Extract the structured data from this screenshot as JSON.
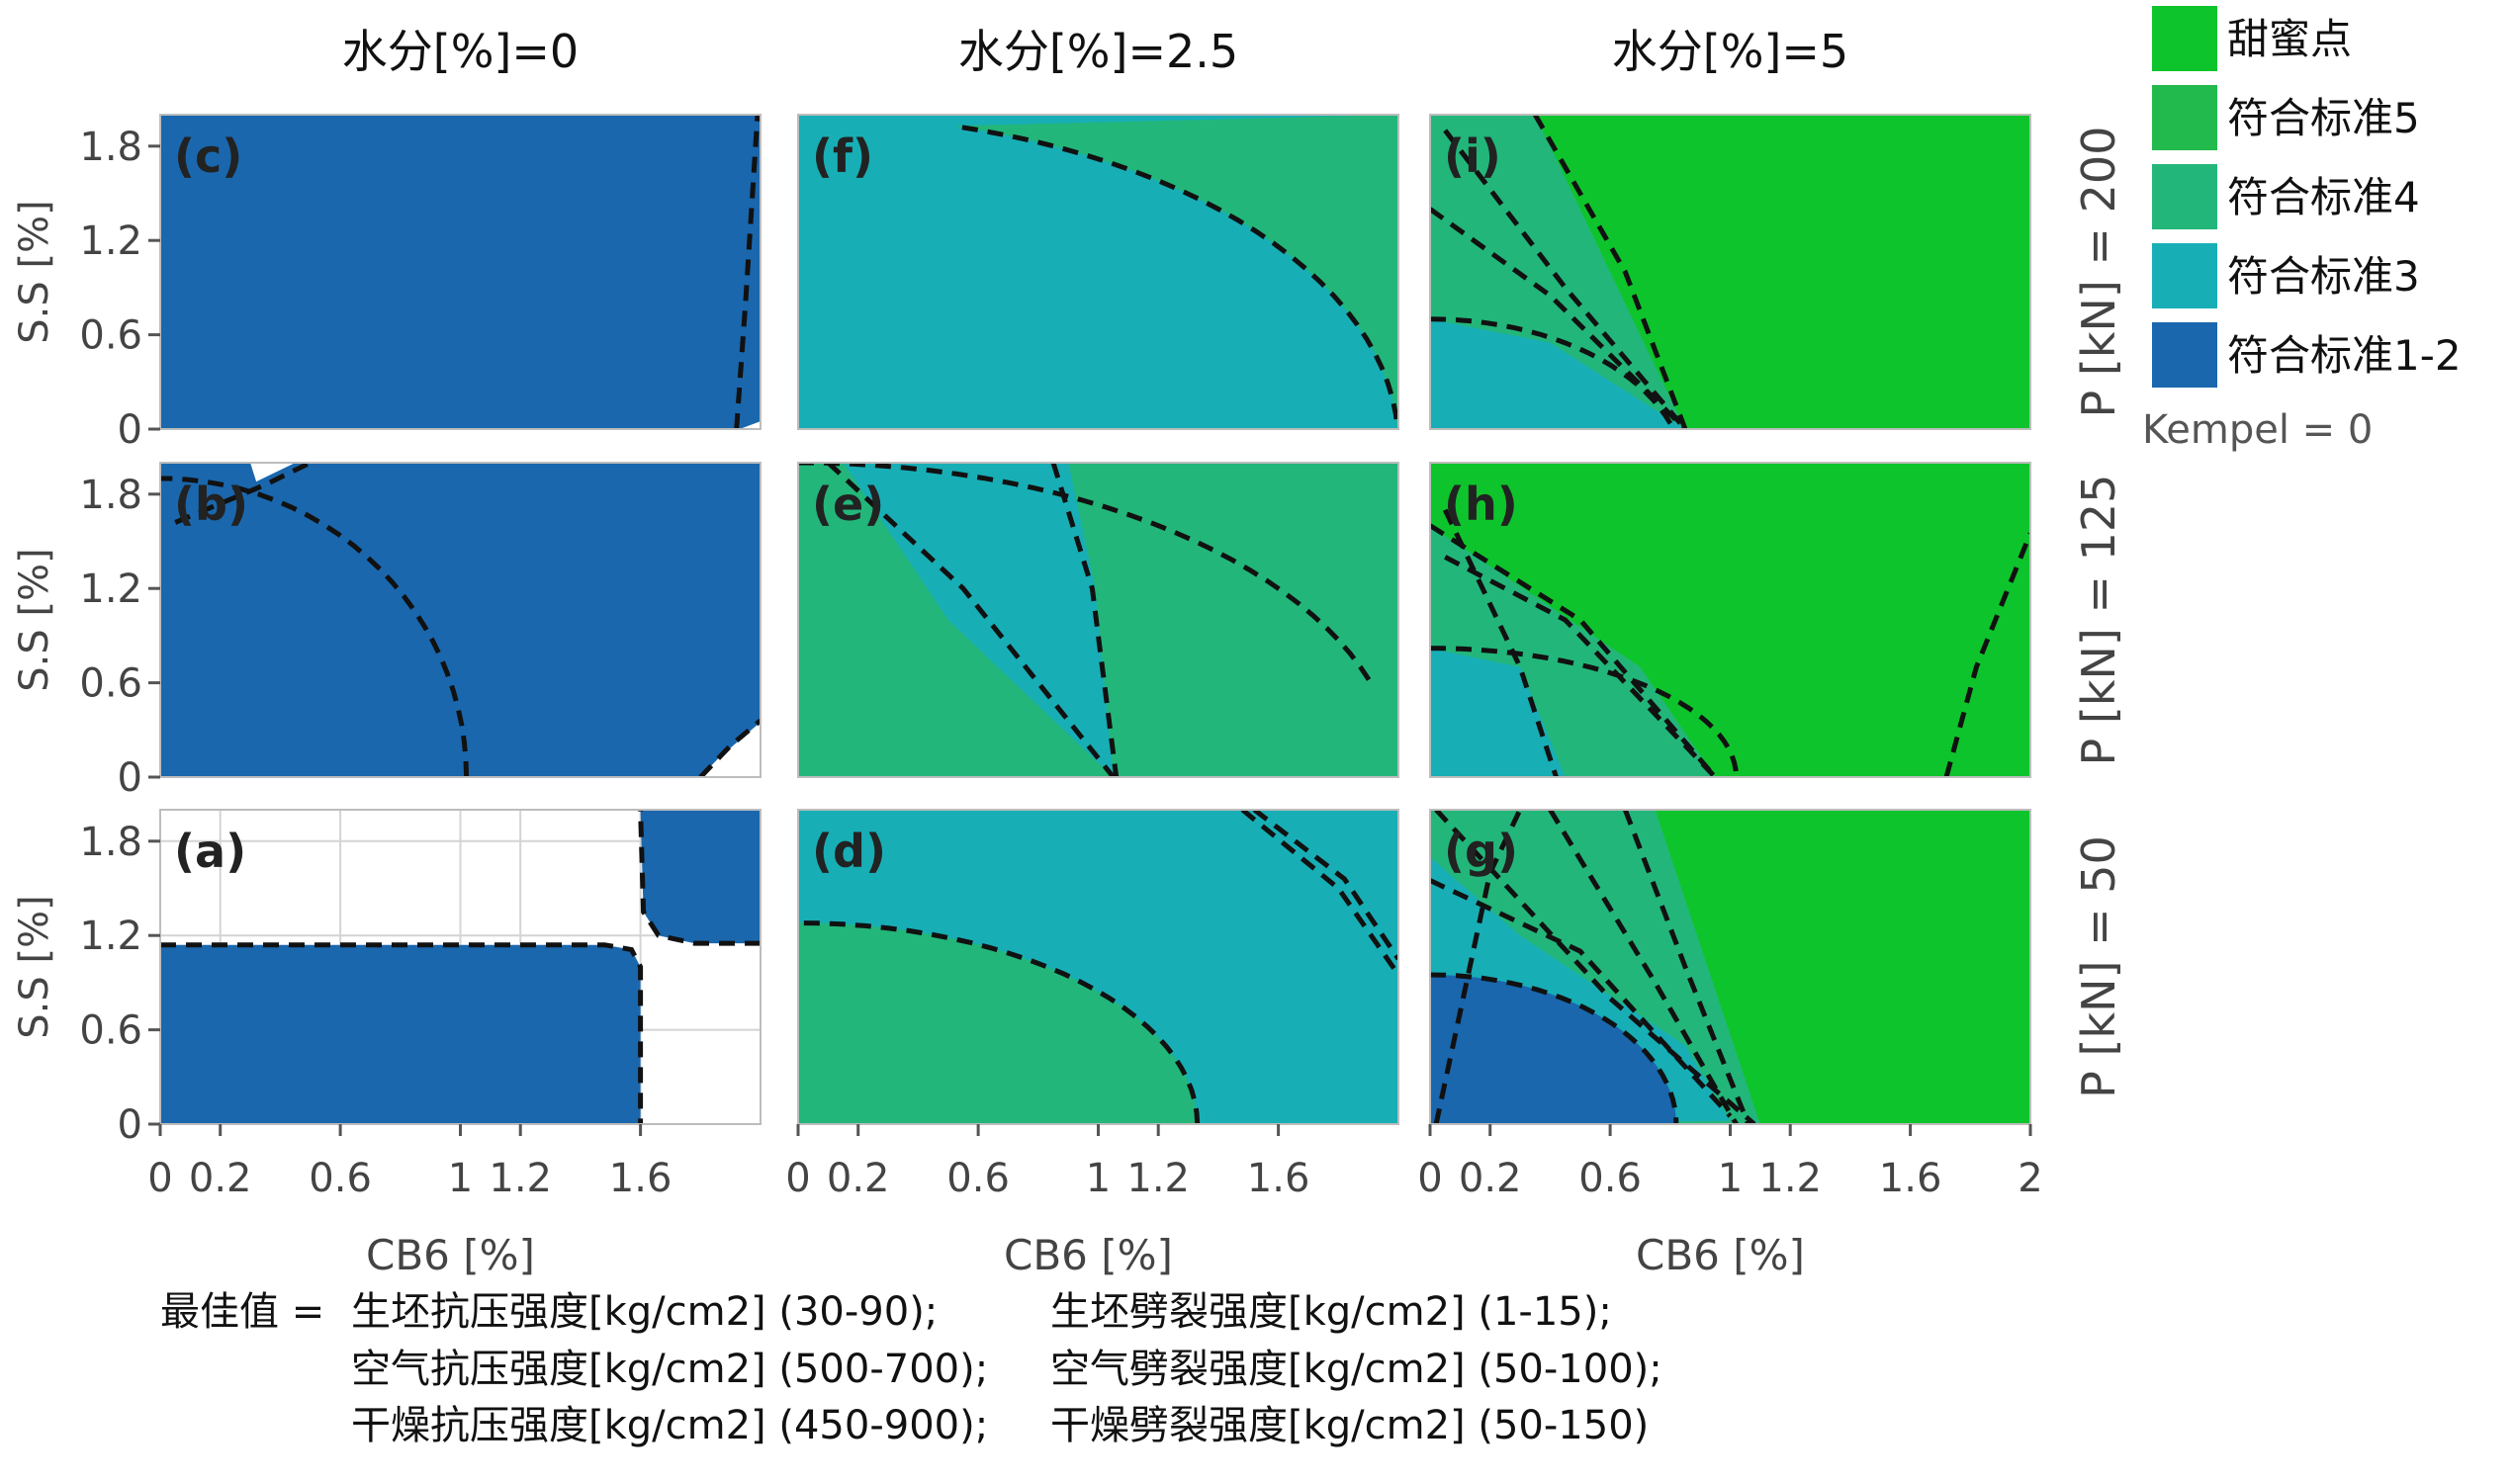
{
  "chart_data": {
    "type": "contour-grid",
    "column_titles": [
      "水分[%]=0",
      "水分[%]=2.5",
      "水分[%]=5"
    ],
    "row_titles": [
      "P [kN] = 200",
      "P [kN] = 125",
      "P [kN] = 50"
    ],
    "xlabel": "CB6 [%]",
    "ylabel": "S.S [%]",
    "x_ticks": [
      "0",
      "0.2",
      "0.6",
      "1",
      "1.2",
      "1.6",
      "2"
    ],
    "x_ticks_values": [
      0,
      0.2,
      0.6,
      1,
      1.2,
      1.6,
      2
    ],
    "y_ticks": [
      "1.8",
      "1.2",
      "0.6",
      "0"
    ],
    "y_ticks_values": [
      1.8,
      1.2,
      0.6,
      0
    ],
    "xlim": [
      0,
      2
    ],
    "ylim": [
      0,
      2
    ],
    "legend": [
      {
        "label": "甜蜜点",
        "color": "#0ec42c"
      },
      {
        "label": "符合标准5",
        "color": "#22ba4c"
      },
      {
        "label": "符合标准4",
        "color": "#23b67a"
      },
      {
        "label": "符合标准3",
        "color": "#18aeb6"
      },
      {
        "label": "符合标准1-2",
        "color": "#1a67ad"
      }
    ],
    "legend_note": "Kempel = 0",
    "panels": [
      {
        "label": "(c)",
        "row": 0,
        "col": 0,
        "fill": "#1a67ad"
      },
      {
        "label": "(f)",
        "row": 0,
        "col": 1,
        "fill": "#18aeb6"
      },
      {
        "label": "(i)",
        "row": 0,
        "col": 2,
        "fill": "#0ec42c"
      },
      {
        "label": "(b)",
        "row": 1,
        "col": 0,
        "fill": "#1a67ad"
      },
      {
        "label": "(e)",
        "row": 1,
        "col": 1,
        "fill": "#23b67a"
      },
      {
        "label": "(h)",
        "row": 1,
        "col": 2,
        "fill": "#0ec42c"
      },
      {
        "label": "(a)",
        "row": 2,
        "col": 0,
        "fill": "#ffffff"
      },
      {
        "label": "(d)",
        "row": 2,
        "col": 1,
        "fill": "#18aeb6"
      },
      {
        "label": "(g)",
        "row": 2,
        "col": 2,
        "fill": "#0ec42c"
      }
    ],
    "optimum": {
      "prefix": "最佳值 =",
      "criteria": [
        "生坯抗压强度[kg/cm2] (30-90);",
        "生坯劈裂强度[kg/cm2] (1-15);",
        "空气抗压强度[kg/cm2] (500-700);",
        "空气劈裂强度[kg/cm2] (50-100);",
        "干燥抗压强度[kg/cm2] (450-900);",
        "干燥劈裂强度[kg/cm2] (50-150)"
      ]
    }
  }
}
